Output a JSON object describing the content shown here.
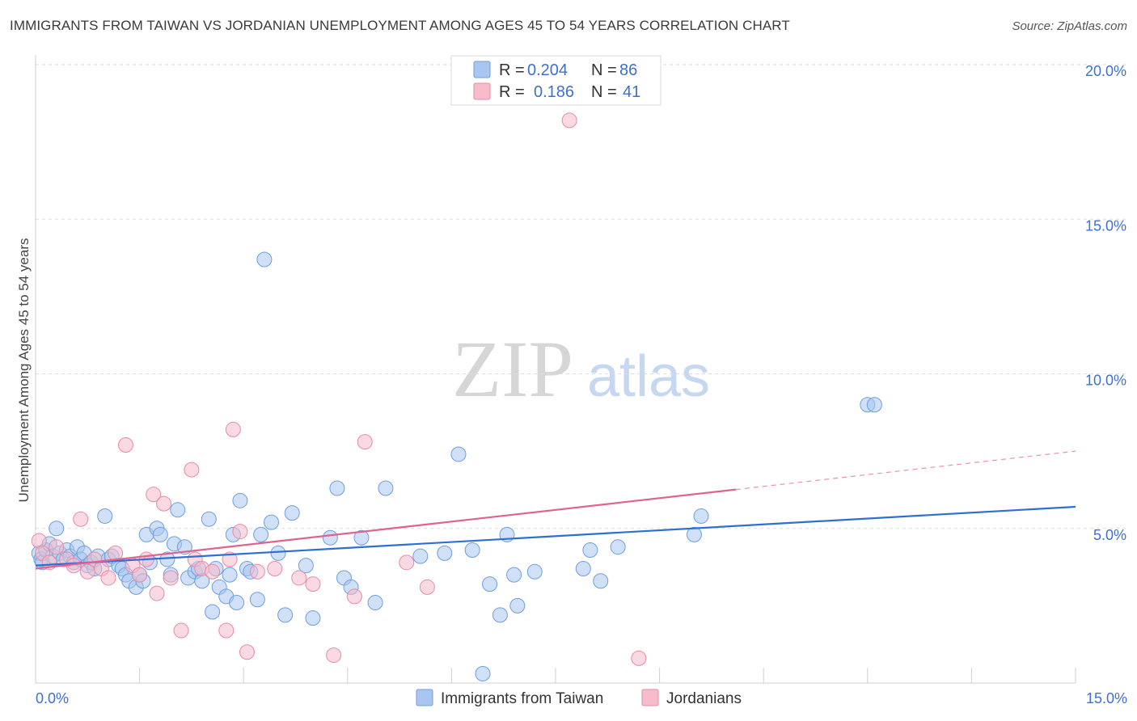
{
  "title": "IMMIGRANTS FROM TAIWAN VS JORDANIAN UNEMPLOYMENT AMONG AGES 45 TO 54 YEARS CORRELATION CHART",
  "source": "Source: ZipAtlas.com",
  "watermark": {
    "zip": "ZIP",
    "atlas": "atlas"
  },
  "colors": {
    "blue_fill": "#a8c6f0",
    "blue_stroke": "#6f9ee0",
    "blue_line": "#2f6fcf",
    "pink_fill": "#f6bccb",
    "pink_stroke": "#e88aa6",
    "pink_line": "#e0628f",
    "axis_text": "#3f6fd1"
  },
  "legend": {
    "rows": [
      {
        "r_label": "R =",
        "r_value": "0.204",
        "n_label": "N =",
        "n_value": "86"
      },
      {
        "r_label": "R =",
        "r_value": "0.186",
        "n_label": "N =",
        "n_value": "41"
      }
    ]
  },
  "chart_data": {
    "type": "scatter",
    "title": "IMMIGRANTS FROM TAIWAN VS JORDANIAN UNEMPLOYMENT AMONG AGES 45 TO 54 YEARS CORRELATION CHART",
    "xlabel": "",
    "ylabel": "Unemployment Among Ages 45 to 54 years",
    "xlim": [
      0,
      15
    ],
    "ylim": [
      0,
      20
    ],
    "x_tick_labels": [
      "0.0%",
      "15.0%"
    ],
    "y_ticks": [
      5,
      10,
      15,
      20
    ],
    "y_tick_labels": [
      "5.0%",
      "10.0%",
      "15.0%",
      "20.0%"
    ],
    "grid": true,
    "legend_position": "top-center",
    "series": [
      {
        "name": "Immigrants from Taiwan",
        "color": "blue",
        "R": 0.204,
        "N": 86,
        "trend": {
          "x0": 0,
          "y0": 3.8,
          "x1": 15,
          "y1": 5.7
        },
        "points": [
          [
            0.05,
            4.2
          ],
          [
            0.08,
            4.0
          ],
          [
            0.1,
            3.9
          ],
          [
            0.15,
            4.3
          ],
          [
            0.2,
            4.5
          ],
          [
            0.25,
            4.1
          ],
          [
            0.3,
            5.0
          ],
          [
            0.35,
            4.2
          ],
          [
            0.4,
            4.0
          ],
          [
            0.45,
            4.3
          ],
          [
            0.5,
            4.1
          ],
          [
            0.55,
            3.9
          ],
          [
            0.6,
            4.4
          ],
          [
            0.65,
            4.0
          ],
          [
            0.7,
            4.2
          ],
          [
            0.75,
            3.8
          ],
          [
            0.8,
            3.9
          ],
          [
            0.85,
            3.7
          ],
          [
            0.9,
            4.1
          ],
          [
            1.0,
            5.4
          ],
          [
            1.05,
            4.0
          ],
          [
            1.1,
            4.1
          ],
          [
            1.2,
            3.8
          ],
          [
            1.25,
            3.7
          ],
          [
            1.3,
            3.5
          ],
          [
            1.35,
            3.3
          ],
          [
            1.45,
            3.1
          ],
          [
            1.5,
            3.5
          ],
          [
            1.55,
            3.3
          ],
          [
            1.6,
            4.8
          ],
          [
            1.65,
            3.9
          ],
          [
            1.75,
            5.0
          ],
          [
            1.8,
            4.8
          ],
          [
            1.9,
            4.0
          ],
          [
            1.95,
            3.5
          ],
          [
            2.0,
            4.5
          ],
          [
            2.05,
            5.6
          ],
          [
            2.15,
            4.4
          ],
          [
            2.2,
            3.4
          ],
          [
            2.3,
            3.6
          ],
          [
            2.35,
            3.7
          ],
          [
            2.4,
            3.3
          ],
          [
            2.5,
            5.3
          ],
          [
            2.55,
            2.3
          ],
          [
            2.6,
            3.7
          ],
          [
            2.65,
            3.1
          ],
          [
            2.75,
            2.8
          ],
          [
            2.8,
            3.5
          ],
          [
            2.85,
            4.8
          ],
          [
            2.9,
            2.6
          ],
          [
            2.95,
            5.9
          ],
          [
            3.05,
            3.7
          ],
          [
            3.1,
            3.6
          ],
          [
            3.2,
            2.7
          ],
          [
            3.25,
            4.8
          ],
          [
            3.3,
            13.7
          ],
          [
            3.4,
            5.2
          ],
          [
            3.5,
            4.2
          ],
          [
            3.6,
            2.2
          ],
          [
            3.7,
            5.5
          ],
          [
            3.9,
            3.8
          ],
          [
            4.0,
            2.1
          ],
          [
            4.25,
            4.7
          ],
          [
            4.35,
            6.3
          ],
          [
            4.45,
            3.4
          ],
          [
            4.55,
            3.1
          ],
          [
            4.7,
            4.7
          ],
          [
            4.9,
            2.6
          ],
          [
            5.05,
            6.3
          ],
          [
            5.55,
            4.1
          ],
          [
            5.9,
            4.2
          ],
          [
            6.1,
            7.4
          ],
          [
            6.3,
            4.3
          ],
          [
            6.45,
            0.3
          ],
          [
            6.55,
            3.2
          ],
          [
            6.7,
            2.2
          ],
          [
            6.8,
            4.8
          ],
          [
            6.9,
            3.5
          ],
          [
            6.95,
            2.5
          ],
          [
            7.2,
            3.6
          ],
          [
            7.9,
            3.7
          ],
          [
            8.0,
            4.3
          ],
          [
            8.15,
            3.3
          ],
          [
            8.4,
            4.4
          ],
          [
            9.5,
            4.8
          ],
          [
            9.6,
            5.4
          ],
          [
            12.0,
            9.0
          ],
          [
            12.1,
            9.0
          ]
        ]
      },
      {
        "name": "Jordanians",
        "color": "pink",
        "R": 0.186,
        "N": 41,
        "trend": {
          "x0": 0,
          "y0": 3.7,
          "x1": 15,
          "y1": 7.5,
          "solid_until_x": 10.1
        },
        "points": [
          [
            0.05,
            4.6
          ],
          [
            0.1,
            4.2
          ],
          [
            0.2,
            3.9
          ],
          [
            0.3,
            4.4
          ],
          [
            0.45,
            4.0
          ],
          [
            0.55,
            3.8
          ],
          [
            0.65,
            5.3
          ],
          [
            0.75,
            3.6
          ],
          [
            0.85,
            4.0
          ],
          [
            0.95,
            3.7
          ],
          [
            1.05,
            3.4
          ],
          [
            1.15,
            4.2
          ],
          [
            1.3,
            7.7
          ],
          [
            1.4,
            3.8
          ],
          [
            1.5,
            3.5
          ],
          [
            1.6,
            4.0
          ],
          [
            1.7,
            6.1
          ],
          [
            1.75,
            2.9
          ],
          [
            1.85,
            5.8
          ],
          [
            1.95,
            3.4
          ],
          [
            2.1,
            1.7
          ],
          [
            2.25,
            6.9
          ],
          [
            2.3,
            4.0
          ],
          [
            2.4,
            3.7
          ],
          [
            2.55,
            3.6
          ],
          [
            2.75,
            1.7
          ],
          [
            2.8,
            4.0
          ],
          [
            2.85,
            8.2
          ],
          [
            2.95,
            4.9
          ],
          [
            3.05,
            1.0
          ],
          [
            3.2,
            3.6
          ],
          [
            3.45,
            3.7
          ],
          [
            3.8,
            3.4
          ],
          [
            4.0,
            3.2
          ],
          [
            4.3,
            0.9
          ],
          [
            4.6,
            2.8
          ],
          [
            4.75,
            7.8
          ],
          [
            5.35,
            3.9
          ],
          [
            5.65,
            3.1
          ],
          [
            7.7,
            18.2
          ],
          [
            8.7,
            0.8
          ]
        ]
      }
    ]
  },
  "bottom_legend": [
    "Immigrants from Taiwan",
    "Jordanians"
  ]
}
